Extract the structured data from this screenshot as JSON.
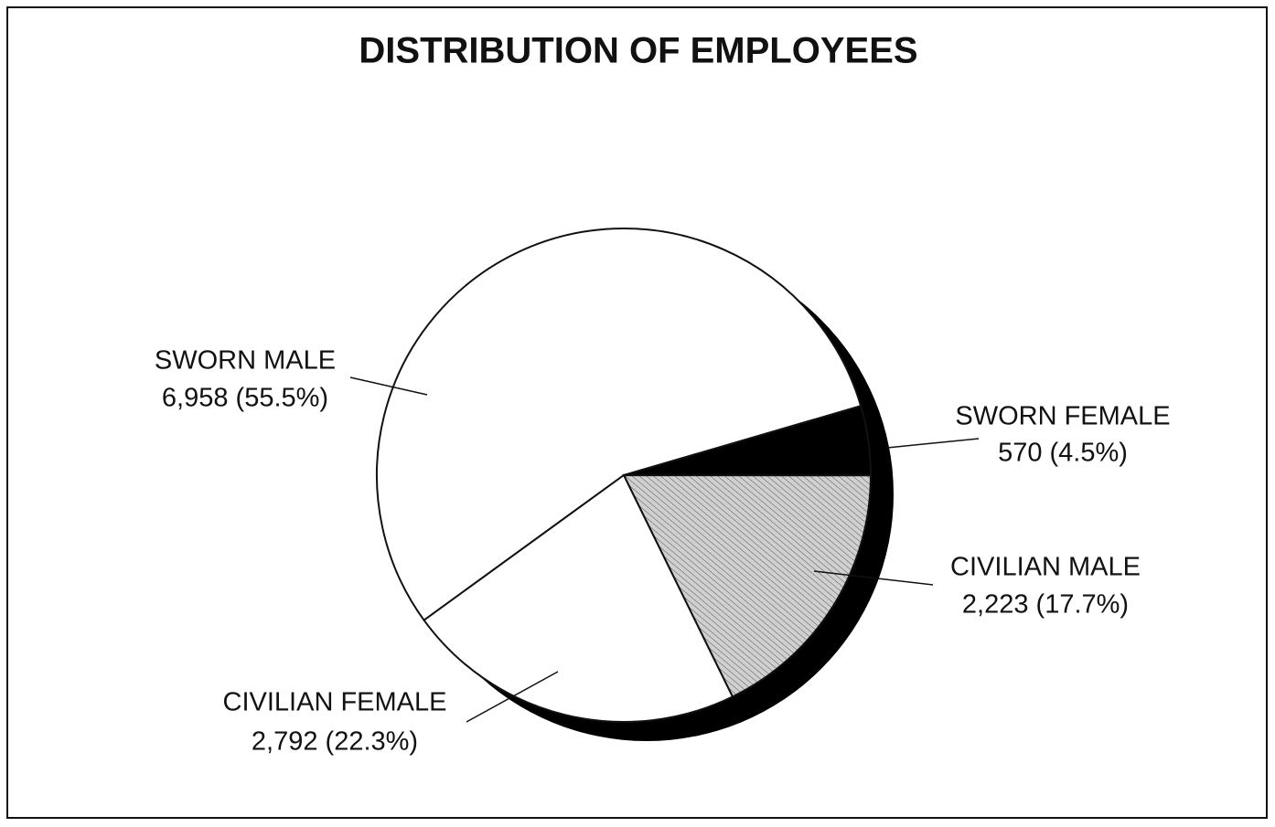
{
  "chart_data": {
    "type": "pie",
    "title": "DISTRIBUTION OF EMPLOYEES",
    "categories": [
      "SWORN MALE",
      "SWORN FEMALE",
      "CIVILIAN MALE",
      "CIVILIAN FEMALE"
    ],
    "values": [
      6958,
      570,
      2223,
      2792
    ],
    "value_labels": [
      "6,958 (55.5%)",
      "570 (4.5%)",
      "2,223 (17.7%)",
      "2,792 (22.3%)"
    ],
    "colors": [
      "#ffffff",
      "#000000",
      "#d0d0d0",
      "#ffffff"
    ]
  }
}
